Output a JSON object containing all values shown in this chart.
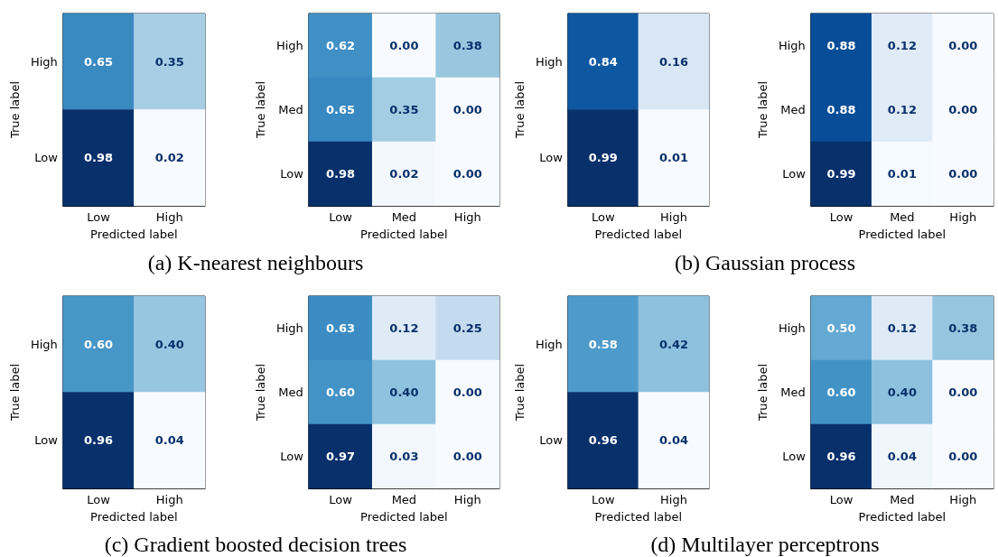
{
  "chart_data": [
    {
      "type": "heatmap",
      "xlabel": "Predicted label",
      "ylabel": "True label",
      "categories": [
        "Low",
        "High"
      ],
      "y_categories": [
        "High",
        "Low"
      ],
      "cells": [
        [
          0.65,
          0.35
        ],
        [
          0.98,
          0.02
        ]
      ],
      "cell_labels": [
        [
          "0.65",
          "0.35"
        ],
        [
          "0.98",
          "0.02"
        ]
      ],
      "annotations": [
        "(a) K-nearest neighbours"
      ]
    },
    {
      "type": "heatmap",
      "xlabel": "Predicted label",
      "ylabel": "True label",
      "categories": [
        "Low",
        "Med",
        "High"
      ],
      "y_categories": [
        "High",
        "Med",
        "Low"
      ],
      "cells": [
        [
          0.62,
          0.0,
          0.38
        ],
        [
          0.65,
          0.35,
          0.0
        ],
        [
          0.98,
          0.02,
          0.0
        ]
      ],
      "cell_labels": [
        [
          "0.62",
          "0.00",
          "0.38"
        ],
        [
          "0.65",
          "0.35",
          "0.00"
        ],
        [
          "0.98",
          "0.02",
          "0.00"
        ]
      ]
    },
    {
      "type": "heatmap",
      "xlabel": "Predicted label",
      "ylabel": "True label",
      "categories": [
        "Low",
        "High"
      ],
      "y_categories": [
        "High",
        "Low"
      ],
      "cells": [
        [
          0.84,
          0.16
        ],
        [
          0.99,
          0.01
        ]
      ],
      "cell_labels": [
        [
          "0.84",
          "0.16"
        ],
        [
          "0.99",
          "0.01"
        ]
      ],
      "annotations": [
        "(b) Gaussian process"
      ]
    },
    {
      "type": "heatmap",
      "xlabel": "Predicted label",
      "ylabel": "True label",
      "categories": [
        "Low",
        "Med",
        "High"
      ],
      "y_categories": [
        "High",
        "Med",
        "Low"
      ],
      "cells": [
        [
          0.88,
          0.12,
          0.0
        ],
        [
          0.88,
          0.12,
          0.0
        ],
        [
          0.99,
          0.01,
          0.0
        ]
      ],
      "cell_labels": [
        [
          "0.88",
          "0.12",
          "0.00"
        ],
        [
          "0.88",
          "0.12",
          "0.00"
        ],
        [
          "0.99",
          "0.01",
          "0.00"
        ]
      ]
    },
    {
      "type": "heatmap",
      "xlabel": "Predicted label",
      "ylabel": "True label",
      "categories": [
        "Low",
        "High"
      ],
      "y_categories": [
        "High",
        "Low"
      ],
      "cells": [
        [
          0.6,
          0.4
        ],
        [
          0.96,
          0.04
        ]
      ],
      "cell_labels": [
        [
          "0.60",
          "0.40"
        ],
        [
          "0.96",
          "0.04"
        ]
      ],
      "annotations": [
        "(c) Gradient boosted decision trees"
      ]
    },
    {
      "type": "heatmap",
      "xlabel": "Predicted label",
      "ylabel": "True label",
      "categories": [
        "Low",
        "Med",
        "High"
      ],
      "y_categories": [
        "High",
        "Med",
        "Low"
      ],
      "cells": [
        [
          0.63,
          0.12,
          0.25
        ],
        [
          0.6,
          0.4,
          0.0
        ],
        [
          0.97,
          0.03,
          0.0
        ]
      ],
      "cell_labels": [
        [
          "0.63",
          "0.12",
          "0.25"
        ],
        [
          "0.60",
          "0.40",
          "0.00"
        ],
        [
          "0.97",
          "0.03",
          "0.00"
        ]
      ]
    },
    {
      "type": "heatmap",
      "xlabel": "Predicted label",
      "ylabel": "True label",
      "categories": [
        "Low",
        "High"
      ],
      "y_categories": [
        "High",
        "Low"
      ],
      "cells": [
        [
          0.58,
          0.42
        ],
        [
          0.96,
          0.04
        ]
      ],
      "cell_labels": [
        [
          "0.58",
          "0.42"
        ],
        [
          "0.96",
          "0.04"
        ]
      ],
      "annotations": [
        "(d) Multilayer perceptrons"
      ]
    },
    {
      "type": "heatmap",
      "xlabel": "Predicted label",
      "ylabel": "True label",
      "categories": [
        "Low",
        "Med",
        "High"
      ],
      "y_categories": [
        "High",
        "Med",
        "Low"
      ],
      "cells": [
        [
          0.5,
          0.12,
          0.38
        ],
        [
          0.6,
          0.4,
          0.0
        ],
        [
          0.96,
          0.04,
          0.0
        ]
      ],
      "cell_labels": [
        [
          "0.50",
          "0.12",
          "0.38"
        ],
        [
          "0.60",
          "0.40",
          "0.00"
        ],
        [
          "0.96",
          "0.04",
          "0.00"
        ]
      ]
    }
  ]
}
